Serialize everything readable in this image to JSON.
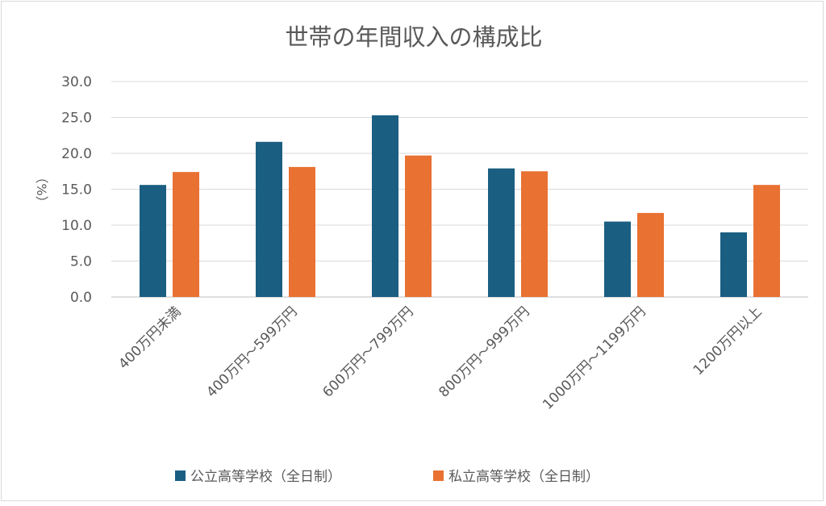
{
  "chart_data": {
    "type": "bar",
    "title": "世帯の年間収入の構成比",
    "ylabel": "（%）",
    "xlabel": "",
    "ylim": [
      0,
      30
    ],
    "yticks": [
      "0.0",
      "5.0",
      "10.0",
      "15.0",
      "20.0",
      "25.0",
      "30.0"
    ],
    "categories": [
      "400万円未満",
      "400万円～599万円",
      "600万円～799万円",
      "800万円～999万円",
      "1000万円～1199万円",
      "1200万円以上"
    ],
    "series": [
      {
        "name": "公立高等学校（全日制）",
        "color": "#1a5e82",
        "values": [
          15.6,
          21.6,
          25.3,
          17.9,
          10.5,
          9.0
        ]
      },
      {
        "name": "私立高等学校（全日制）",
        "color": "#e97132",
        "values": [
          17.4,
          18.1,
          19.7,
          17.5,
          11.7,
          15.6
        ]
      }
    ],
    "grid": true,
    "legend_position": "bottom"
  }
}
